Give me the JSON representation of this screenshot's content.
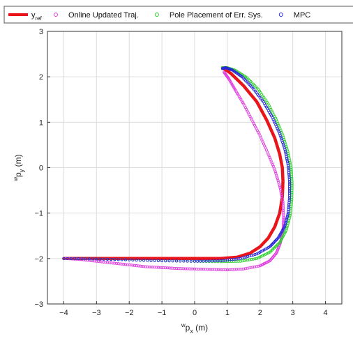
{
  "chart_data": {
    "type": "scatter",
    "xlabel": {
      "base": "w",
      "sub": "p",
      "subsub": "x",
      "unit": "(m)"
    },
    "ylabel": {
      "base": "w",
      "sub": "p",
      "subsub": "y",
      "unit": "(m)"
    },
    "xlim": [
      -4.5,
      4.5
    ],
    "ylim": [
      -3,
      3
    ],
    "xticks": [
      -4,
      -3,
      -2,
      -1,
      0,
      1,
      2,
      3,
      4
    ],
    "yticks": [
      -3,
      -2,
      -1,
      0,
      1,
      2,
      3
    ],
    "grid": true,
    "legend": {
      "placement": "top",
      "orientation": "horizontal"
    },
    "series": [
      {
        "name_base": "y",
        "name_sub": "ref",
        "style": "line",
        "color": "#e8161b",
        "x": [
          -4.0,
          -3.0,
          -2.0,
          -1.0,
          0.0,
          0.8,
          1.3,
          1.7,
          2.0,
          2.25,
          2.45,
          2.6,
          2.68,
          2.7,
          2.68,
          2.6,
          2.45,
          2.2,
          1.9,
          1.5,
          1.1,
          0.85
        ],
        "y": [
          -2.0,
          -2.0,
          -2.0,
          -2.0,
          -2.0,
          -2.0,
          -1.97,
          -1.88,
          -1.74,
          -1.55,
          -1.3,
          -1.0,
          -0.65,
          -0.3,
          0.0,
          0.3,
          0.65,
          1.05,
          1.45,
          1.8,
          2.08,
          2.2
        ]
      },
      {
        "name": "Online Updated Traj.",
        "style": "markers",
        "color": "#e040e0",
        "x": [
          -4.0,
          -3.5,
          -3.0,
          -2.5,
          -2.0,
          -1.5,
          -1.0,
          -0.5,
          0.0,
          0.5,
          1.0,
          1.5,
          2.0,
          2.3,
          2.5,
          2.62,
          2.7,
          2.72,
          2.7,
          2.6,
          2.45,
          2.25,
          2.0,
          1.75,
          1.5,
          1.25,
          1.05,
          0.9
        ],
        "y": [
          -2.0,
          -2.02,
          -2.06,
          -2.1,
          -2.14,
          -2.18,
          -2.2,
          -2.22,
          -2.23,
          -2.24,
          -2.25,
          -2.23,
          -2.16,
          -2.05,
          -1.88,
          -1.66,
          -1.4,
          -1.1,
          -0.75,
          -0.4,
          -0.05,
          0.3,
          0.7,
          1.05,
          1.4,
          1.7,
          1.95,
          2.1
        ]
      },
      {
        "name": "Pole Placement of Err. Sys.",
        "style": "markers",
        "color": "#30d030",
        "x": [
          -4.0,
          -3.0,
          -2.0,
          -1.0,
          0.0,
          0.8,
          1.4,
          1.9,
          2.3,
          2.6,
          2.8,
          2.92,
          2.97,
          2.98,
          2.95,
          2.85,
          2.7,
          2.5,
          2.25,
          1.95,
          1.6,
          1.25,
          1.0,
          0.85
        ],
        "y": [
          -2.0,
          -2.01,
          -2.03,
          -2.05,
          -2.06,
          -2.07,
          -2.06,
          -2.0,
          -1.86,
          -1.65,
          -1.38,
          -1.05,
          -0.7,
          -0.35,
          0.0,
          0.35,
          0.7,
          1.05,
          1.4,
          1.72,
          1.98,
          2.14,
          2.2,
          2.2
        ]
      },
      {
        "name": "MPC",
        "style": "markers",
        "color": "#2828d8",
        "x": [
          -4.0,
          -3.0,
          -2.0,
          -1.0,
          0.0,
          0.8,
          1.4,
          1.9,
          2.3,
          2.55,
          2.75,
          2.86,
          2.9,
          2.9,
          2.86,
          2.76,
          2.6,
          2.38,
          2.1,
          1.78,
          1.45,
          1.15,
          0.95,
          0.85
        ],
        "y": [
          -2.0,
          -2.01,
          -2.03,
          -2.05,
          -2.06,
          -2.05,
          -2.0,
          -1.9,
          -1.74,
          -1.55,
          -1.3,
          -1.0,
          -0.65,
          -0.3,
          0.05,
          0.4,
          0.75,
          1.1,
          1.45,
          1.75,
          2.0,
          2.15,
          2.2,
          2.18
        ]
      }
    ]
  }
}
